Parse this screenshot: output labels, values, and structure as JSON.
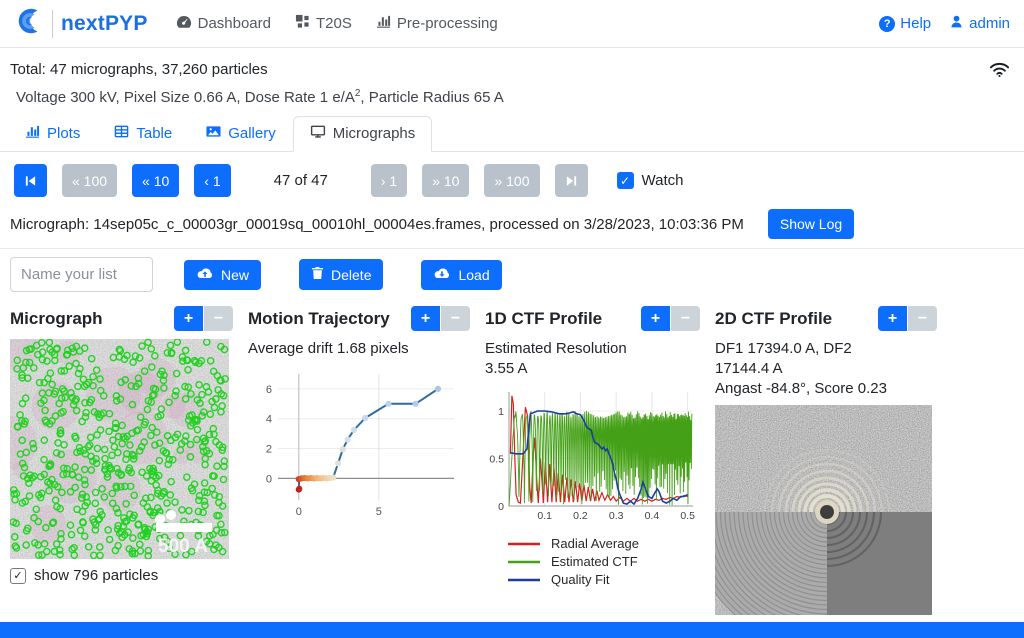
{
  "icons": {
    "help_glyph": "?",
    "check": "✓",
    "plus": "+",
    "minus": "−"
  },
  "colors": {
    "primary": "#0d6efd",
    "brand": "#1b6fe0",
    "gray_button": "#b9c2cb",
    "minus_button": "#ccd3d9",
    "particle_green": "#1ed21e"
  },
  "navbar": {
    "brand": "nextPYP",
    "items": [
      {
        "label": "Dashboard"
      },
      {
        "label": "T20S"
      },
      {
        "label": "Pre-processing"
      }
    ],
    "right": [
      {
        "label": "Help"
      },
      {
        "label": "admin"
      }
    ]
  },
  "summary": {
    "total_line": "Total: 47 micrographs, 37,260 particles",
    "params_prefix": "Voltage 300 kV, Pixel Size 0.66 A, Dose Rate 1 e/A",
    "params_sup": "2",
    "params_suffix": ", Particle Radius 65 A"
  },
  "tabs": [
    {
      "label": "Plots"
    },
    {
      "label": "Table"
    },
    {
      "label": "Gallery"
    },
    {
      "label": "Micrographs"
    }
  ],
  "pagination": {
    "back_buttons": [
      {
        "label": "« 100"
      },
      {
        "label": "« 10"
      },
      {
        "label": "‹ 1"
      }
    ],
    "position_text": "47 of 47",
    "fwd_buttons": [
      {
        "label": "› 1"
      },
      {
        "label": "» 10"
      },
      {
        "label": "» 100"
      }
    ],
    "watch_label": "Watch"
  },
  "micrograph_row": {
    "label": "Micrograph: 14sep05c_c_00003gr_00019sq_00010hl_00004es.frames, processed on 3/28/2023, 10:03:36 PM",
    "show_log": "Show Log"
  },
  "list_controls": {
    "placeholder": "Name your list",
    "new_label": "New",
    "delete_label": "Delete",
    "load_label": "Load"
  },
  "panels": {
    "micrograph": {
      "title": "Micrograph",
      "scalebar": "500 A",
      "show_particles": "show 796 particles",
      "particle_count": 796
    },
    "motion": {
      "title": "Motion Trajectory",
      "subtitle": "Average drift 1.68 pixels"
    },
    "ctf1d": {
      "title": "1D CTF Profile",
      "lines": [
        "Estimated Resolution",
        "3.55 A"
      ]
    },
    "ctf2d": {
      "title": "2D CTF Profile",
      "lines": [
        "DF1 17394.0 A, DF2",
        "17144.4 A",
        "Angast -84.8°, Score 0.23"
      ]
    }
  },
  "chart_data": [
    {
      "type": "line",
      "title": "Motion Trajectory",
      "xlabel": "",
      "ylabel": "",
      "xlim": [
        -1.3,
        9.7
      ],
      "ylim": [
        -1.45,
        7.0
      ],
      "xticks": [
        0,
        5
      ],
      "yticks": [
        0,
        2,
        4,
        6
      ],
      "grid": true,
      "average_drift_pixels": 1.68,
      "line_color": "#2e6da4",
      "point_color_stops": [
        "#b01010",
        "#e87830",
        "#f3b878",
        "#f2ddc2",
        "#cfe0ef",
        "#a9c7e8"
      ],
      "points": [
        [
          0,
          -0.75
        ],
        [
          0.03,
          -0.7
        ],
        [
          0,
          -0.05
        ],
        [
          0.18,
          0
        ],
        [
          0.36,
          0.02
        ],
        [
          0.55,
          0
        ],
        [
          0.75,
          0.02
        ],
        [
          0.95,
          0
        ],
        [
          1.15,
          0.02
        ],
        [
          1.35,
          0
        ],
        [
          1.55,
          0.02
        ],
        [
          1.75,
          0
        ],
        [
          1.95,
          0.02
        ],
        [
          2.15,
          0.05
        ],
        [
          2.45,
          1.0
        ],
        [
          2.75,
          1.95
        ],
        [
          3.05,
          2.6
        ],
        [
          3.45,
          3.25
        ],
        [
          4.15,
          4.05
        ],
        [
          5.6,
          5.0
        ],
        [
          7.3,
          5.0
        ],
        [
          8.7,
          6.0
        ]
      ]
    },
    {
      "type": "line",
      "title": "1D CTF Profile",
      "xlabel": "",
      "ylabel": "",
      "xlim": [
        0,
        0.515
      ],
      "ylim": [
        0,
        1.2
      ],
      "xticks": [
        0.1,
        0.2,
        0.3,
        0.4,
        0.5
      ],
      "yticks": [
        0,
        0.5,
        1
      ],
      "grid": true,
      "legend_position": "bottom",
      "estimated_resolution_A": 3.55,
      "series": [
        {
          "name": "Radial Average",
          "color": "#d62020",
          "points": [
            [
              0.004,
              0.55
            ],
            [
              0.008,
              1.16
            ],
            [
              0.012,
              1.08
            ],
            [
              0.016,
              0.55
            ],
            [
              0.02,
              0.12
            ],
            [
              0.026,
              0.04
            ],
            [
              0.032,
              0.03
            ],
            [
              0.04,
              0.6
            ],
            [
              0.046,
              1.04
            ],
            [
              0.052,
              0.95
            ],
            [
              0.058,
              0.2
            ],
            [
              0.062,
              0.03
            ],
            [
              0.068,
              0.55
            ],
            [
              0.072,
              0.72
            ],
            [
              0.078,
              0.25
            ],
            [
              0.082,
              0.03
            ],
            [
              0.088,
              0.5
            ],
            [
              0.092,
              0.28
            ],
            [
              0.096,
              0.03
            ],
            [
              0.102,
              0.46
            ],
            [
              0.108,
              0.04
            ],
            [
              0.114,
              0.44
            ],
            [
              0.12,
              0.04
            ],
            [
              0.126,
              0.4
            ],
            [
              0.132,
              0.04
            ],
            [
              0.138,
              0.35
            ],
            [
              0.144,
              0.04
            ],
            [
              0.15,
              0.33
            ],
            [
              0.156,
              0.04
            ],
            [
              0.162,
              0.3
            ],
            [
              0.168,
              0.04
            ],
            [
              0.174,
              0.28
            ],
            [
              0.18,
              0.04
            ],
            [
              0.186,
              0.26
            ],
            [
              0.192,
              0.04
            ],
            [
              0.198,
              0.24
            ],
            [
              0.204,
              0.05
            ],
            [
              0.21,
              0.22
            ],
            [
              0.216,
              0.05
            ],
            [
              0.222,
              0.2
            ],
            [
              0.228,
              0.05
            ],
            [
              0.234,
              0.18
            ],
            [
              0.24,
              0.05
            ],
            [
              0.246,
              0.16
            ],
            [
              0.252,
              0.06
            ],
            [
              0.26,
              0.14
            ],
            [
              0.268,
              0.06
            ],
            [
              0.276,
              0.12
            ],
            [
              0.284,
              0.06
            ],
            [
              0.292,
              0.1
            ],
            [
              0.3,
              0.05
            ],
            [
              0.31,
              0.09
            ],
            [
              0.32,
              0.05
            ],
            [
              0.33,
              0.08
            ],
            [
              0.34,
              0.05
            ],
            [
              0.35,
              0.08
            ],
            [
              0.36,
              0.05
            ],
            [
              0.37,
              0.07
            ],
            [
              0.38,
              0.05
            ],
            [
              0.39,
              0.07
            ],
            [
              0.4,
              0.05
            ],
            [
              0.41,
              0.07
            ],
            [
              0.42,
              0.06
            ],
            [
              0.43,
              0.08
            ],
            [
              0.44,
              0.07
            ],
            [
              0.45,
              0.09
            ],
            [
              0.46,
              0.08
            ],
            [
              0.47,
              0.1
            ],
            [
              0.48,
              0.09
            ],
            [
              0.49,
              0.11
            ],
            [
              0.5,
              0.1
            ]
          ]
        },
        {
          "name": "Estimated CTF",
          "color": "#44a016",
          "synthetic": {
            "kind": "ctf",
            "freq_base": 0.028,
            "freq_pow": 1.6,
            "samples": 700,
            "shape_pow": 0.7
          }
        },
        {
          "name": "Quality Fit",
          "color": "#1a3f9e",
          "points": [
            [
              0.004,
              0.56
            ],
            [
              0.02,
              0.55
            ],
            [
              0.04,
              0.55
            ],
            [
              0.05,
              0.6
            ],
            [
              0.06,
              0.97
            ],
            [
              0.08,
              1.0
            ],
            [
              0.1,
              1.0
            ],
            [
              0.12,
              0.99
            ],
            [
              0.14,
              0.97
            ],
            [
              0.16,
              0.97
            ],
            [
              0.17,
              0.98
            ],
            [
              0.18,
              0.99
            ],
            [
              0.19,
              0.97
            ],
            [
              0.2,
              0.96
            ],
            [
              0.21,
              0.9
            ],
            [
              0.215,
              0.85
            ],
            [
              0.22,
              0.82
            ],
            [
              0.23,
              0.8
            ],
            [
              0.235,
              0.72
            ],
            [
              0.24,
              0.67
            ],
            [
              0.25,
              0.65
            ],
            [
              0.26,
              0.6
            ],
            [
              0.265,
              0.62
            ],
            [
              0.27,
              0.58
            ],
            [
              0.275,
              0.6
            ],
            [
              0.28,
              0.55
            ],
            [
              0.285,
              0.5
            ],
            [
              0.29,
              0.45
            ],
            [
              0.295,
              0.35
            ],
            [
              0.3,
              0.28
            ],
            [
              0.305,
              0.18
            ],
            [
              0.31,
              0.12
            ],
            [
              0.315,
              0.08
            ],
            [
              0.32,
              0.03
            ],
            [
              0.33,
              0.02
            ],
            [
              0.34,
              0.05
            ],
            [
              0.35,
              0.02
            ],
            [
              0.36,
              0.08
            ],
            [
              0.37,
              0.18
            ],
            [
              0.375,
              0.25
            ],
            [
              0.38,
              0.2
            ],
            [
              0.39,
              0.1
            ],
            [
              0.4,
              0.08
            ],
            [
              0.41,
              0.15
            ],
            [
              0.415,
              0.18
            ],
            [
              0.42,
              0.15
            ],
            [
              0.43,
              0.05
            ],
            [
              0.44,
              0.03
            ],
            [
              0.45,
              0.05
            ],
            [
              0.46,
              0.08
            ],
            [
              0.47,
              0.06
            ],
            [
              0.48,
              0.1
            ],
            [
              0.49,
              0.1
            ],
            [
              0.5,
              0.12
            ]
          ]
        }
      ]
    }
  ]
}
